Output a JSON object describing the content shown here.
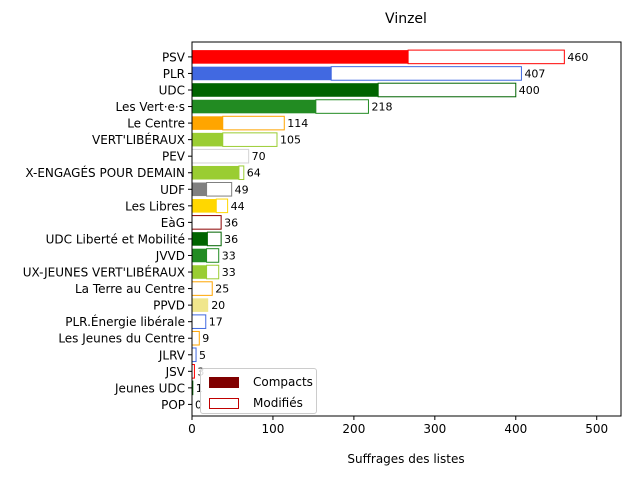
{
  "chart_data": {
    "type": "bar",
    "orientation": "horizontal",
    "title": "Vinzel",
    "xlabel": "Suffrages des listes",
    "ylabel": "",
    "xlim": [
      0,
      530
    ],
    "xticks": [
      0,
      100,
      200,
      300,
      400,
      500
    ],
    "grid": false,
    "legend_position": "lower-left",
    "categories": [
      "PSV",
      "PLR",
      "UDC",
      "Les Vert·e·s",
      "Le Centre",
      "VERT'LIBÉRAUX",
      "PEV",
      "X-ENGAGÉS POUR DEMAIN",
      "UDF",
      "Les Libres",
      "EàG",
      "UDC Liberté et Mobilité",
      "JVVD",
      "UX-JEUNES VERT'LIBÉRAUX",
      "La Terre au Centre",
      "PPVD",
      "PLR.Énergie libérale",
      "Les Jeunes du Centre",
      "JLRV",
      "JSV",
      "Jeunes UDC",
      "POP"
    ],
    "colors": [
      "#ff0000",
      "#4169e1",
      "#006400",
      "#228b22",
      "#ffa500",
      "#9acd32",
      "#d3d3d3",
      "#9acd32",
      "#808080",
      "#ffd700",
      "#8b0000",
      "#006400",
      "#228b22",
      "#9acd32",
      "#ffa500",
      "#f0e68c",
      "#4169e1",
      "#ffa500",
      "#4169e1",
      "#ff0000",
      "#006400",
      "#ff0000"
    ],
    "series": [
      {
        "name": "Compacts",
        "values": [
          267,
          172,
          230,
          153,
          38,
          38,
          0,
          58,
          18,
          30,
          0,
          19,
          18,
          18,
          0,
          20,
          0,
          0,
          0,
          0,
          0,
          0
        ]
      },
      {
        "name": "Modifiés",
        "values": [
          193,
          235,
          170,
          65,
          76,
          67,
          70,
          6,
          31,
          14,
          36,
          17,
          15,
          15,
          25,
          0,
          17,
          9,
          5,
          3,
          1,
          0
        ]
      }
    ],
    "totals": [
      460,
      407,
      400,
      218,
      114,
      105,
      70,
      64,
      49,
      44,
      36,
      36,
      33,
      33,
      25,
      20,
      17,
      9,
      5,
      3,
      1,
      0
    ],
    "total_labels": [
      "460",
      "407",
      "400",
      "218",
      "114",
      "105",
      "70",
      "64",
      "49",
      "44",
      "36",
      "36",
      "33",
      "33",
      "25",
      "20",
      "17",
      "9",
      "5",
      "3",
      "1",
      "0"
    ],
    "legend": {
      "compact_label": "Compacts",
      "modified_label": "Modifiés",
      "compact_color": "#800000",
      "modified_edge_color": "#c00000"
    }
  }
}
